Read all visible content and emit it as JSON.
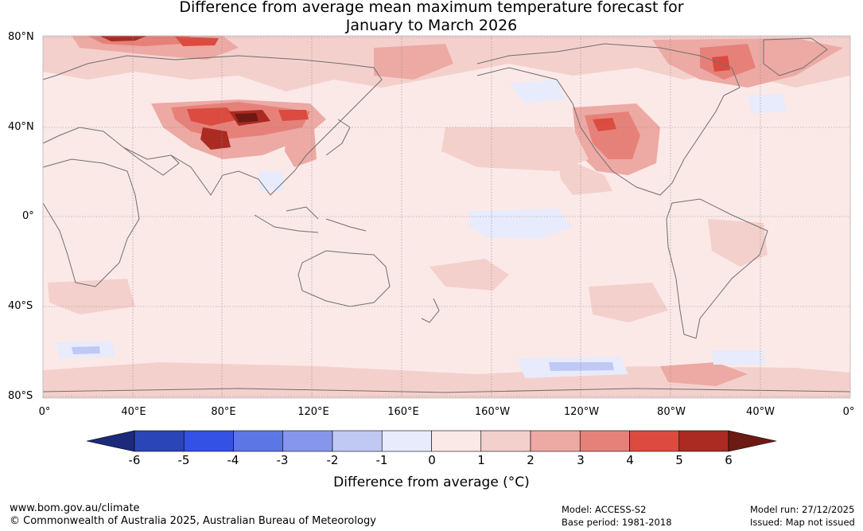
{
  "title": {
    "line1": "Difference from average mean maximum temperature forecast for",
    "line2": "January to March 2026"
  },
  "map": {
    "lat_labels": [
      "80°N",
      "40°N",
      "0°",
      "40°S",
      "80°S"
    ],
    "lon_labels": [
      "0°",
      "40°E",
      "80°E",
      "120°E",
      "160°E",
      "160°W",
      "120°W",
      "80°W",
      "40°W",
      "0°"
    ],
    "ocean_color": "#fbe9e8",
    "coast_color": "#6f6f6f",
    "grid_color": "#8a8a8a"
  },
  "colorbar": {
    "label": "Difference from average (°C)",
    "ticks": [
      "-6",
      "-5",
      "-4",
      "-3",
      "-2",
      "-1",
      "0",
      "1",
      "2",
      "3",
      "4",
      "5",
      "6"
    ],
    "under_color": "#1b2a7a",
    "over_color": "#6e1a14",
    "colors": [
      "#2a45b8",
      "#3351e4",
      "#5c76e6",
      "#8696ec",
      "#c0c8f4",
      "#e7ebfb",
      "#fbe9e8",
      "#f4d0cc",
      "#eda9a3",
      "#e6817a",
      "#db4b3f",
      "#ab2a22"
    ]
  },
  "footer": {
    "url": "www.bom.gov.au/climate",
    "copyright": "© Commonwealth of Australia 2025, Australian Bureau of Meteorology",
    "model": "Model: ACCESS-S2",
    "base_period": "Base period: 1981-2018",
    "model_run": "Model run: 27/12/2025",
    "issued": "Issued: Map not issued"
  }
}
